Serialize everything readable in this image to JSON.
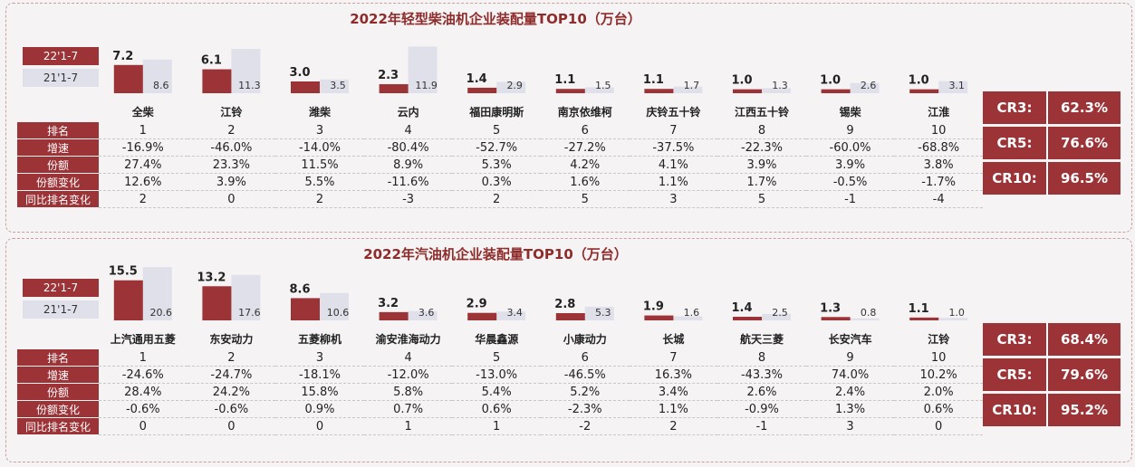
{
  "colors": {
    "current": "#9c3337",
    "previous": "#dfe0ea",
    "title": "#8e2b2b"
  },
  "legend": {
    "current": "22'1-7",
    "previous": "21'1-7"
  },
  "row_labels": [
    "排名",
    "增速",
    "份额",
    "份额变化",
    "同比排名变化"
  ],
  "diesel": {
    "title": "2022年轻型柴油机企业装配量TOP10（万台）",
    "cr": [
      {
        "label": "CR3:",
        "value": "62.3%"
      },
      {
        "label": "CR5:",
        "value": "76.6%"
      },
      {
        "label": "CR10:",
        "value": "96.5%"
      }
    ],
    "rows": [
      [
        "1",
        "2",
        "3",
        "4",
        "5",
        "6",
        "7",
        "8",
        "9",
        "10"
      ],
      [
        "-16.9%",
        "-46.0%",
        "-14.0%",
        "-80.4%",
        "-52.7%",
        "-27.2%",
        "-37.5%",
        "-22.3%",
        "-60.0%",
        "-68.8%"
      ],
      [
        "27.4%",
        "23.3%",
        "11.5%",
        "8.9%",
        "5.3%",
        "4.2%",
        "4.1%",
        "3.9%",
        "3.9%",
        "3.8%"
      ],
      [
        "12.6%",
        "3.9%",
        "5.5%",
        "-11.6%",
        "0.3%",
        "1.6%",
        "1.1%",
        "1.7%",
        "-0.5%",
        "-1.7%"
      ],
      [
        "2",
        "0",
        "2",
        "-3",
        "2",
        "5",
        "3",
        "5",
        "-1",
        "-4"
      ]
    ]
  },
  "gasoline": {
    "title": "2022年汽油机企业装配量TOP10（万台）",
    "cr": [
      {
        "label": "CR3:",
        "value": "68.4%"
      },
      {
        "label": "CR5:",
        "value": "79.6%"
      },
      {
        "label": "CR10:",
        "value": "95.2%"
      }
    ],
    "rows": [
      [
        "1",
        "2",
        "3",
        "4",
        "5",
        "6",
        "7",
        "8",
        "9",
        "10"
      ],
      [
        "-24.6%",
        "-24.7%",
        "-18.1%",
        "-12.0%",
        "-13.0%",
        "-46.5%",
        "16.3%",
        "-43.3%",
        "74.0%",
        "10.2%"
      ],
      [
        "28.4%",
        "24.2%",
        "15.8%",
        "5.8%",
        "5.4%",
        "5.2%",
        "3.4%",
        "2.6%",
        "2.4%",
        "2.0%"
      ],
      [
        "-0.6%",
        "-0.6%",
        "0.9%",
        "0.7%",
        "0.6%",
        "-2.3%",
        "1.1%",
        "-0.9%",
        "1.3%",
        "0.6%"
      ],
      [
        "0",
        "0",
        "0",
        "1",
        "1",
        "-2",
        "2",
        "-1",
        "3",
        "0"
      ]
    ]
  },
  "chart_data": [
    {
      "type": "bar",
      "title": "2022年轻型柴油机企业装配量TOP10（万台）",
      "categories": [
        "全柴",
        "江铃",
        "潍柴",
        "云内",
        "福田康明斯",
        "南京依维柯",
        "庆铃五十铃",
        "江西五十铃",
        "锡柴",
        "江淮"
      ],
      "series": [
        {
          "name": "22'1-7",
          "values": [
            7.2,
            6.1,
            3.0,
            2.3,
            1.4,
            1.1,
            1.1,
            1.0,
            1.0,
            1.0
          ]
        },
        {
          "name": "21'1-7",
          "values": [
            8.6,
            11.3,
            3.5,
            11.9,
            2.9,
            1.5,
            1.7,
            1.3,
            2.6,
            3.1
          ]
        }
      ],
      "ylim": [
        0,
        12
      ],
      "legend": "top-left"
    },
    {
      "type": "bar",
      "title": "2022年汽油机企业装配量TOP10（万台）",
      "categories": [
        "上汽通用五菱",
        "东安动力",
        "五菱柳机",
        "渝安淮海动力",
        "华晨鑫源",
        "小康动力",
        "长城",
        "航天三菱",
        "长安汽车",
        "江铃"
      ],
      "series": [
        {
          "name": "22'1-7",
          "values": [
            15.5,
            13.2,
            8.6,
            3.2,
            2.9,
            2.8,
            1.9,
            1.4,
            1.3,
            1.1
          ]
        },
        {
          "name": "21'1-7",
          "values": [
            20.6,
            17.6,
            10.6,
            3.6,
            3.4,
            5.3,
            1.6,
            2.5,
            0.8,
            1.0
          ]
        }
      ],
      "ylim": [
        0,
        21
      ],
      "legend": "top-left"
    }
  ]
}
